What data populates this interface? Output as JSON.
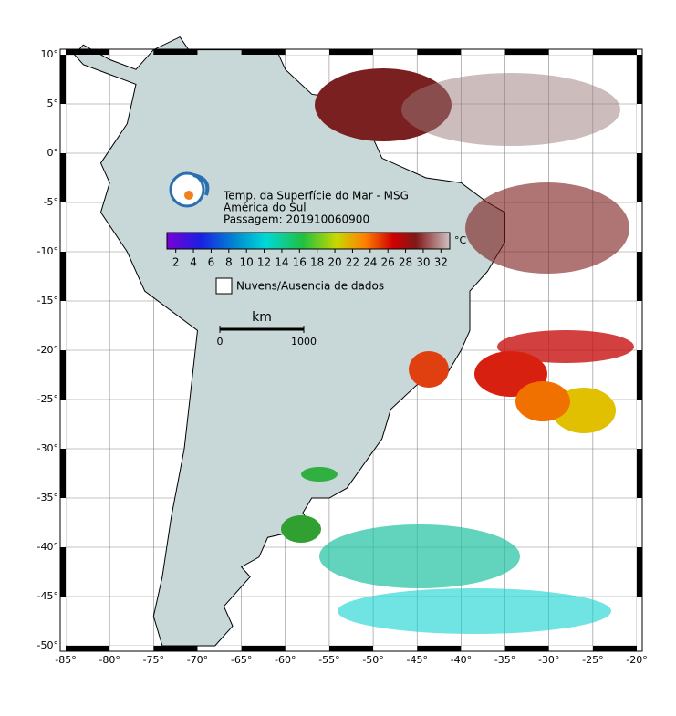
{
  "map": {
    "title_lines": [
      "Temp. da Superfície do Mar - MSG",
      "América do Sul",
      "Passagem: 201910060900"
    ],
    "xlim": [
      -85,
      -20
    ],
    "ylim": [
      -50,
      10
    ],
    "xticks": [
      {
        "value": -85,
        "label": "-85°"
      },
      {
        "value": -80,
        "label": "-80°"
      },
      {
        "value": -75,
        "label": "-75°"
      },
      {
        "value": -70,
        "label": "-70°"
      },
      {
        "value": -65,
        "label": "-65°"
      },
      {
        "value": -60,
        "label": "-60°"
      },
      {
        "value": -55,
        "label": "-55°"
      },
      {
        "value": -50,
        "label": "-50°"
      },
      {
        "value": -45,
        "label": "-45°"
      },
      {
        "value": -40,
        "label": "-40°"
      },
      {
        "value": -35,
        "label": "-35°"
      },
      {
        "value": -30,
        "label": "-30°"
      },
      {
        "value": -25,
        "label": "-25°"
      },
      {
        "value": -20,
        "label": "-20°"
      }
    ],
    "yticks": [
      {
        "value": 10,
        "label": "10°"
      },
      {
        "value": 5,
        "label": "5°"
      },
      {
        "value": 0,
        "label": "0°"
      },
      {
        "value": -5,
        "label": "-5°"
      },
      {
        "value": -10,
        "label": "-10°"
      },
      {
        "value": -15,
        "label": "-15°"
      },
      {
        "value": -20,
        "label": "-20°"
      },
      {
        "value": -25,
        "label": "-25°"
      },
      {
        "value": -30,
        "label": "-30°"
      },
      {
        "value": -35,
        "label": "-35°"
      },
      {
        "value": -40,
        "label": "-40°"
      },
      {
        "value": -45,
        "label": "-45°"
      },
      {
        "value": -50,
        "label": "-50°"
      }
    ],
    "colorbar": {
      "unit": "°C",
      "lim": [
        1,
        33
      ],
      "ticks": [
        2,
        4,
        6,
        8,
        10,
        12,
        14,
        16,
        18,
        20,
        22,
        24,
        26,
        28,
        30,
        32
      ]
    },
    "legend": "Nuvens/Ausencia de dados",
    "scale": {
      "unit": "km",
      "ticks": [
        0,
        1000
      ]
    }
  }
}
